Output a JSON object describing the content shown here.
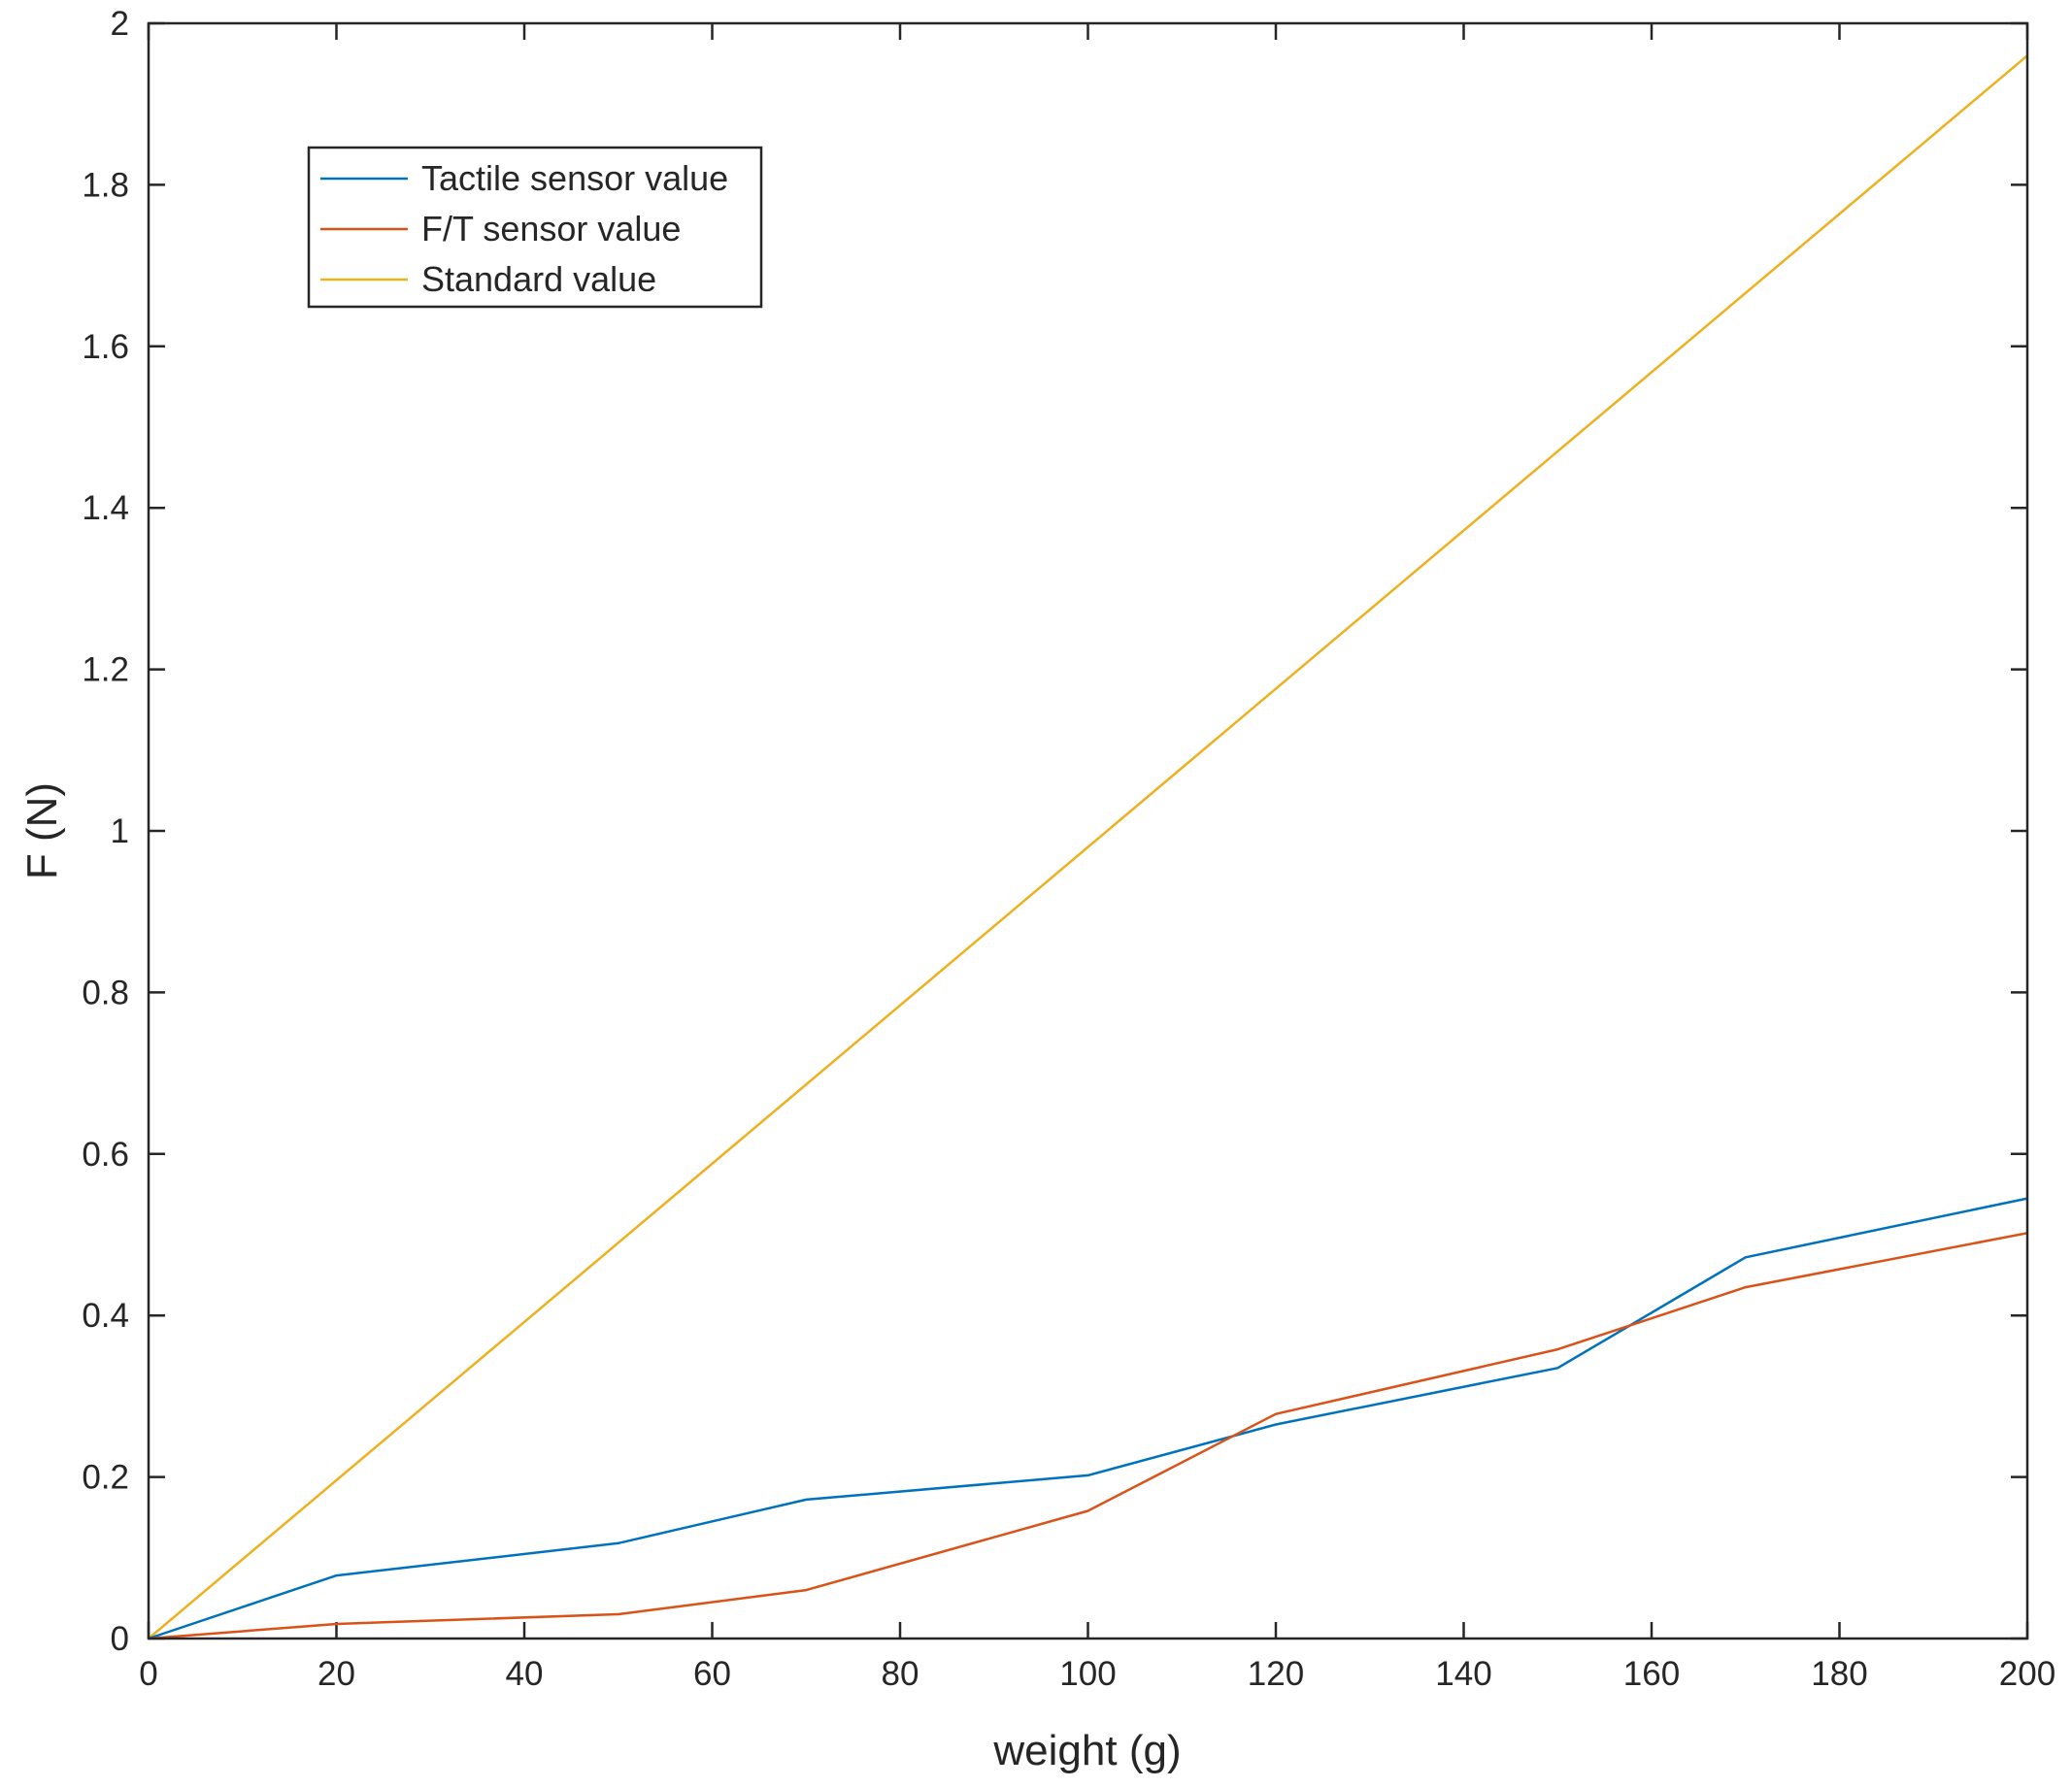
{
  "chart_data": {
    "type": "line",
    "title": "",
    "xlabel": "weight (g)",
    "ylabel": "F (N)",
    "xlim": [
      0,
      200
    ],
    "ylim": [
      0,
      2
    ],
    "xticks": [
      0,
      20,
      40,
      60,
      80,
      100,
      120,
      140,
      160,
      180,
      200
    ],
    "yticks": [
      0,
      0.2,
      0.4,
      0.6,
      0.8,
      1,
      1.2,
      1.4,
      1.6,
      1.8,
      2
    ],
    "grid": false,
    "legend_position": "top-left",
    "series": [
      {
        "name": "Tactile sensor value",
        "color": "#0072BD",
        "x": [
          0,
          20,
          50,
          70,
          100,
          120,
          150,
          170,
          200
        ],
        "y": [
          0,
          0.078,
          0.118,
          0.172,
          0.202,
          0.265,
          0.335,
          0.472,
          0.545
        ]
      },
      {
        "name": "F/T sensor value",
        "color": "#D95319",
        "x": [
          0,
          20,
          50,
          70,
          100,
          120,
          150,
          170,
          200
        ],
        "y": [
          0,
          0.018,
          0.03,
          0.06,
          0.158,
          0.278,
          0.358,
          0.435,
          0.502
        ]
      },
      {
        "name": "Standard value",
        "color": "#EDB120",
        "x": [
          0,
          200
        ],
        "y": [
          0,
          1.96
        ]
      }
    ]
  }
}
